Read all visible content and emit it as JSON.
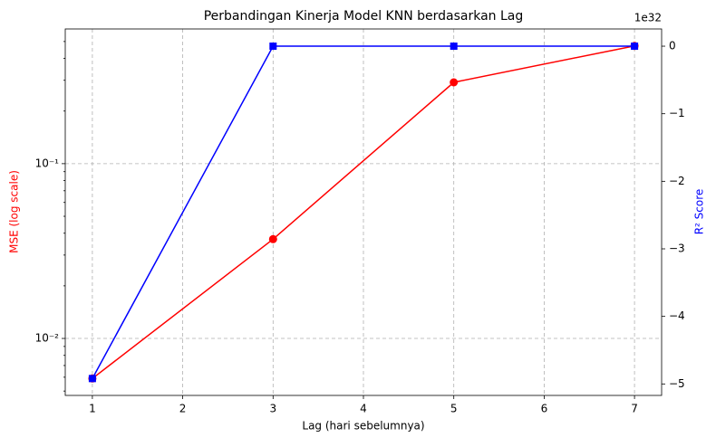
{
  "chart_data": {
    "type": "line",
    "title": "Perbandingan Kinerja Model KNN berdasarkan Lag",
    "xlabel": "Lag (hari sebelumnya)",
    "ylabel": "MSE (log scale)",
    "y2label": "R² Score",
    "y2_offset_label": "1e32",
    "x": [
      1,
      3,
      5,
      7
    ],
    "xlim": [
      0.7,
      7.3
    ],
    "xticks": [
      1,
      2,
      3,
      4,
      5,
      6,
      7
    ],
    "yscale": "log",
    "ylim": [
      0.00472,
      0.59
    ],
    "yticks": [
      {
        "value": 0.01,
        "label": "10⁻²"
      },
      {
        "value": 0.1,
        "label": "10⁻¹"
      }
    ],
    "yminor_ticks": [
      0.005,
      0.006,
      0.007,
      0.008,
      0.009,
      0.02,
      0.03,
      0.04,
      0.05,
      0.06,
      0.07,
      0.08,
      0.09,
      0.2,
      0.3,
      0.4,
      0.5
    ],
    "y2lim": [
      -5.17e+32,
      2.55e+31
    ],
    "y2ticks": [
      {
        "value": -5e+32,
        "label": "−5"
      },
      {
        "value": -4e+32,
        "label": "−4"
      },
      {
        "value": -3e+32,
        "label": "−3"
      },
      {
        "value": -2e+32,
        "label": "−2"
      },
      {
        "value": -1e+32,
        "label": "−1"
      },
      0
    ],
    "grid": true,
    "series": [
      {
        "name": "MSE",
        "color": "red",
        "marker": "circle",
        "values": [
          0.0059,
          0.037,
          0.292,
          0.472
        ]
      },
      {
        "name": "R² Score",
        "color": "blue",
        "marker": "square",
        "axis": "y2",
        "values": [
          -4.92e+32,
          0,
          0,
          0
        ]
      }
    ]
  }
}
